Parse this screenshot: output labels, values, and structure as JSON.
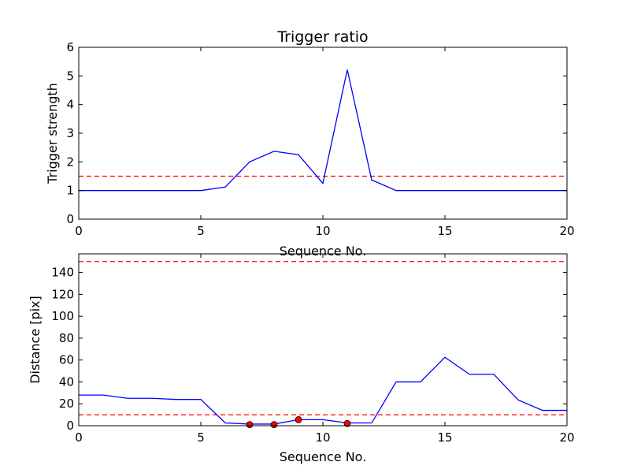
{
  "chart_data": [
    {
      "type": "line",
      "title": "Trigger ratio",
      "xlabel": "Sequence No.",
      "ylabel": "Trigger strength",
      "xlim": [
        0,
        20
      ],
      "ylim": [
        0,
        6
      ],
      "x_ticks": [
        0,
        5,
        10,
        15,
        20
      ],
      "y_ticks": [
        0,
        1,
        2,
        3,
        4,
        5,
        6
      ],
      "grid": false,
      "series": [
        {
          "style": "line",
          "color": "#0000ff",
          "x": [
            0,
            1,
            2,
            3,
            4,
            5,
            6,
            7,
            8,
            9,
            10,
            11,
            12,
            13,
            14,
            15,
            16,
            17,
            18,
            19,
            20
          ],
          "values": [
            1.0,
            1.0,
            1.0,
            1.0,
            1.0,
            1.0,
            1.12,
            2.0,
            2.37,
            2.25,
            1.25,
            5.22,
            1.37,
            1.0,
            1.0,
            1.0,
            1.0,
            1.0,
            1.0,
            1.0,
            1.0
          ]
        }
      ],
      "hlines": [
        {
          "y": 1.5,
          "color": "#ff0000",
          "style": "dashed"
        }
      ]
    },
    {
      "type": "line",
      "title": "",
      "xlabel": "Sequence No.",
      "ylabel": "Distance [pix]",
      "xlim": [
        0,
        20
      ],
      "ylim": [
        0,
        157
      ],
      "x_ticks": [
        0,
        5,
        10,
        15,
        20
      ],
      "y_ticks": [
        0,
        20,
        40,
        60,
        80,
        100,
        120,
        140
      ],
      "grid": false,
      "series": [
        {
          "style": "line",
          "color": "#0000ff",
          "x": [
            0,
            1,
            2,
            3,
            4,
            5,
            6,
            7,
            8,
            9,
            10,
            11,
            12,
            13,
            14,
            15,
            16,
            17,
            18,
            19,
            20
          ],
          "values": [
            28,
            28,
            25,
            25,
            24,
            24,
            2.5,
            1.5,
            1.5,
            5.5,
            5.5,
            2.5,
            2.5,
            40,
            40,
            62.5,
            47,
            47,
            23.5,
            14,
            14
          ]
        },
        {
          "style": "markers",
          "color": "#ff0000",
          "x": [
            7,
            8,
            9,
            11
          ],
          "values": [
            1,
            1,
            5.5,
            2
          ]
        }
      ],
      "hlines": [
        {
          "y": 150,
          "color": "#ff0000",
          "style": "dashed"
        },
        {
          "y": 10,
          "color": "#ff0000",
          "style": "dashed"
        }
      ]
    }
  ]
}
